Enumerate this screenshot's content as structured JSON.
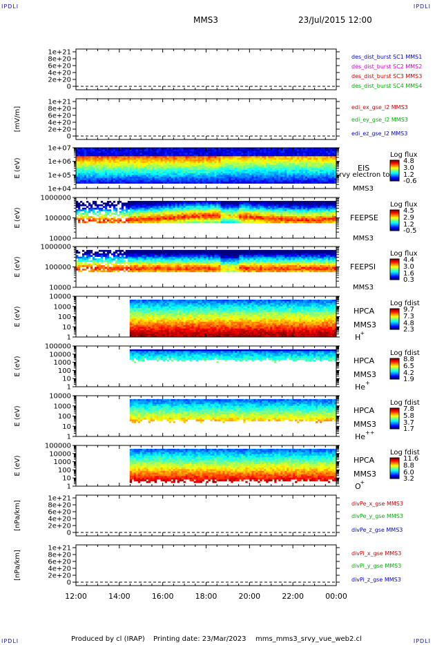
{
  "header": {
    "corner_tl": "IPDLI",
    "corner_tr": "IPDLI",
    "corner_bl": "IPDLI",
    "corner_br": "IPDLI",
    "spacecraft": "MMS3",
    "datetime": "23/Jul/2015 12:00"
  },
  "footer": {
    "produced_by": "Produced by  cl (IRAP)",
    "printing_date": "Printing date: 23/Mar/2023",
    "script": "mms_mms3_srvy_vue_web2.cl"
  },
  "colors": {
    "sc1": "#0000c8",
    "sc2": "#d000d0",
    "sc3": "#d00000",
    "sc4": "#00b000",
    "x": "#d00000",
    "y": "#00b000",
    "z": "#0000c8"
  },
  "chart_data": [
    {
      "type": "line",
      "ylabel": "",
      "yticks": [
        "1e+21",
        "8e+20",
        "6e+20",
        "4e+20",
        "2e+20",
        "0"
      ],
      "ylim": [
        0,
        1e+21
      ],
      "zero_line": "dashed",
      "series": [
        {
          "name": "des_dist_burst SC1 MMS1",
          "color": "#0000c8",
          "values": []
        },
        {
          "name": "des_dist_burst SC2 MMS2",
          "color": "#d000d0",
          "values": []
        },
        {
          "name": "des_dist_burst SC3 MMS3",
          "color": "#d00000",
          "values": []
        },
        {
          "name": "des_dist_burst SC4 MMS4",
          "color": "#00b000",
          "values": []
        }
      ]
    },
    {
      "type": "line",
      "ylabel": "[mV/m]",
      "yticks": [
        "1e+21",
        "8e+20",
        "6e+20",
        "4e+20",
        "2e+20",
        "0"
      ],
      "ylim": [
        0,
        1e+21
      ],
      "zero_line": "dashed",
      "series": [
        {
          "name": "edi_ex_gse_l2 MMS3",
          "color": "#d00000",
          "values": []
        },
        {
          "name": "edi_ey_gse_l2 MMS3",
          "color": "#00b000",
          "values": []
        },
        {
          "name": "edi_ez_gse_l2 MMS3",
          "color": "#0000c8",
          "values": []
        }
      ]
    },
    {
      "type": "heatmap",
      "ylabel": "E (eV)",
      "yticks": [
        "1e+07",
        "1e+06",
        "1e+05",
        "1e+04"
      ],
      "scale": "log",
      "instrument": "EIS",
      "product": "srvy electron to",
      "spacecraft": "MMS3",
      "colorbar": {
        "title": "Log flux",
        "ticks": [
          "4.8",
          "3.0",
          "1.2",
          "-0.6"
        ]
      },
      "data_start": "12:00"
    },
    {
      "type": "heatmap",
      "ylabel": "E (eV)",
      "yticks": [
        "1000000",
        "100000",
        "10000"
      ],
      "scale": "log",
      "instrument": "FEEPSE",
      "spacecraft": "MMS3",
      "colorbar": {
        "title": "Log flux",
        "ticks": [
          "4.5",
          "2.9",
          "1.2",
          "-0.5"
        ]
      },
      "data_start": "12:00"
    },
    {
      "type": "heatmap",
      "ylabel": "E (eV)",
      "yticks": [
        "1000000",
        "100000",
        "10000"
      ],
      "scale": "log",
      "instrument": "FEEPSI",
      "spacecraft": "MMS3",
      "colorbar": {
        "title": "Log flux",
        "ticks": [
          "4.4",
          "3.0",
          "1.6",
          "0.3"
        ]
      },
      "data_start": "12:00"
    },
    {
      "type": "heatmap",
      "ylabel": "E (eV)",
      "yticks": [
        "10000",
        "1000",
        "100",
        "10",
        "1"
      ],
      "scale": "log",
      "instrument": "HPCA",
      "spacecraft": "MMS3",
      "species": "H",
      "species_charge": "+",
      "colorbar": {
        "title": "Log fdist",
        "ticks": [
          "9.7",
          "7.3",
          "4.8",
          "2.3"
        ]
      },
      "data_start": "14:24"
    },
    {
      "type": "heatmap",
      "ylabel": "E (eV)",
      "yticks": [
        "100000",
        "10000",
        "1000",
        "100",
        "10",
        "1"
      ],
      "scale": "log",
      "instrument": "HPCA",
      "spacecraft": "MMS3",
      "species": "He",
      "species_charge": "+",
      "colorbar": {
        "title": "Log fdist",
        "ticks": [
          "8.8",
          "6.5",
          "4.2",
          "1.9"
        ]
      },
      "data_start": "14:24"
    },
    {
      "type": "heatmap",
      "ylabel": "E (eV)",
      "yticks": [
        "10000",
        "1000",
        "100",
        "10",
        "1"
      ],
      "scale": "log",
      "instrument": "HPCA",
      "spacecraft": "MMS3",
      "species": "He",
      "species_charge": "++",
      "colorbar": {
        "title": "Log fdist",
        "ticks": [
          "7.8",
          "5.8",
          "3.7",
          "1.7"
        ]
      },
      "data_start": "14:24"
    },
    {
      "type": "heatmap",
      "ylabel": "E (eV)",
      "yticks": [
        "100000",
        "10000",
        "1000",
        "100",
        "10",
        "1"
      ],
      "scale": "log",
      "instrument": "HPCA",
      "spacecraft": "MMS3",
      "species": "O",
      "species_charge": "+",
      "colorbar": {
        "title": "Log fdist",
        "ticks": [
          "11.6",
          "8.8",
          "6.0",
          "3.2"
        ]
      },
      "data_start": "14:24"
    },
    {
      "type": "line",
      "ylabel": "[nPa/km]",
      "yticks": [
        "1e+21",
        "8e+20",
        "6e+20",
        "4e+20",
        "2e+20",
        "0"
      ],
      "ylim": [
        0,
        1e+21
      ],
      "zero_line": "dashed",
      "series": [
        {
          "name": "divPe_x_gse MMS3",
          "color": "#d00000",
          "values": []
        },
        {
          "name": "divPe_y_gse MMS3",
          "color": "#00b000",
          "values": []
        },
        {
          "name": "divPe_z_gse MMS3",
          "color": "#0000c8",
          "values": []
        }
      ]
    },
    {
      "type": "line",
      "ylabel": "[nPa/km]",
      "yticks": [
        "1e+21",
        "8e+20",
        "6e+20",
        "4e+20",
        "2e+20",
        "0"
      ],
      "ylim": [
        0,
        1e+21
      ],
      "zero_line": "dashed",
      "series": [
        {
          "name": "divPi_x_gse MMS3",
          "color": "#d00000",
          "values": []
        },
        {
          "name": "divPi_y_gse MMS3",
          "color": "#00b000",
          "values": []
        },
        {
          "name": "divPi_z_gse MMS3",
          "color": "#0000c8",
          "values": []
        }
      ]
    }
  ],
  "time_axis": {
    "ticks": [
      "12:00",
      "14:00",
      "16:00",
      "18:00",
      "20:00",
      "22:00",
      "00:00"
    ]
  }
}
